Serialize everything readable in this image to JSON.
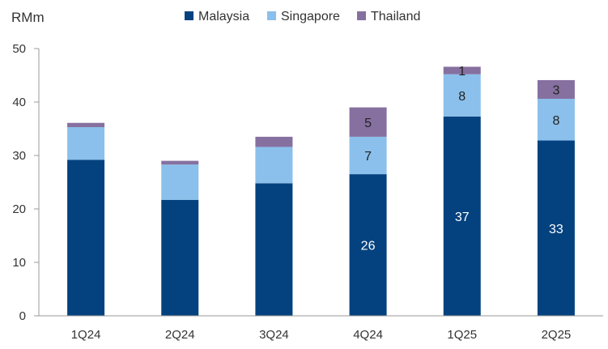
{
  "chart_data": {
    "type": "bar",
    "stacked": true,
    "y_unit_label": "RMm",
    "categories": [
      "1Q24",
      "2Q24",
      "3Q24",
      "4Q24",
      "1Q25",
      "2Q25"
    ],
    "series": [
      {
        "name": "Malaysia",
        "color": "#04427F",
        "values": [
          29.2,
          21.7,
          24.8,
          26.5,
          37.3,
          32.8
        ]
      },
      {
        "name": "Singapore",
        "color": "#8AC0EB",
        "values": [
          6.1,
          6.6,
          6.8,
          7.0,
          7.9,
          7.8
        ]
      },
      {
        "name": "Thailand",
        "color": "#8670A0",
        "values": [
          0.8,
          0.7,
          1.9,
          5.5,
          1.4,
          3.5
        ]
      }
    ],
    "data_labels": [
      {
        "category": "4Q24",
        "series": "Malaysia",
        "text": "26",
        "color": "#ffffff"
      },
      {
        "category": "4Q24",
        "series": "Singapore",
        "text": "7",
        "color": "#222222"
      },
      {
        "category": "4Q24",
        "series": "Thailand",
        "text": "5",
        "color": "#222222"
      },
      {
        "category": "1Q25",
        "series": "Malaysia",
        "text": "37",
        "color": "#ffffff"
      },
      {
        "category": "1Q25",
        "series": "Singapore",
        "text": "8",
        "color": "#222222"
      },
      {
        "category": "1Q25",
        "series": "Thailand",
        "text": "1",
        "color": "#222222"
      },
      {
        "category": "2Q25",
        "series": "Malaysia",
        "text": "33",
        "color": "#ffffff"
      },
      {
        "category": "2Q25",
        "series": "Singapore",
        "text": "8",
        "color": "#222222"
      },
      {
        "category": "2Q25",
        "series": "Thailand",
        "text": "3",
        "color": "#222222"
      }
    ],
    "ylim": [
      0,
      50
    ],
    "yticks": [
      "0",
      "10",
      "20",
      "30",
      "40",
      "50"
    ],
    "grid": false,
    "legend_position": "top"
  }
}
